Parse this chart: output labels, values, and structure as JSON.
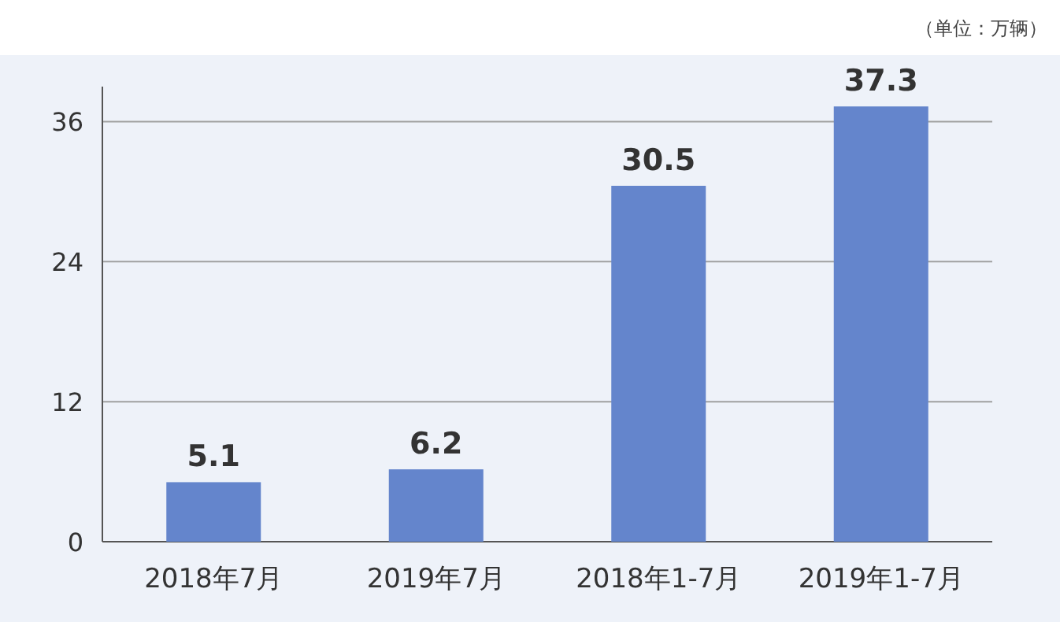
{
  "chart_data": {
    "type": "bar",
    "categories": [
      "2018年7月",
      "2019年7月",
      "2018年1-7月",
      "2019年1-7月"
    ],
    "values": [
      5.1,
      6.2,
      30.5,
      37.3
    ],
    "color": "#6485cc",
    "ylim": [
      0,
      39
    ],
    "yticks": [
      0,
      12,
      24,
      36
    ],
    "grid": "y",
    "data_labels": true,
    "annotations": [
      "（单位：万辆）"
    ]
  }
}
